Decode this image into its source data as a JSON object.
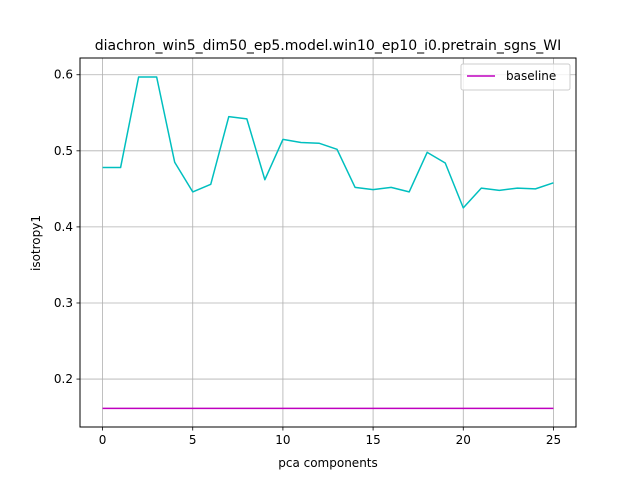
{
  "chart_data": {
    "type": "line",
    "title": "diachron_win5_dim50_ep5.model.win10_ep10_i0.pretrain_sgns_WI",
    "xlabel": "pca components",
    "ylabel": "isotropy1",
    "xlim": [
      -1.25,
      26.25
    ],
    "ylim": [
      0.137,
      0.622
    ],
    "xticks": [
      0,
      5,
      10,
      15,
      20,
      25
    ],
    "yticks": [
      0.2,
      0.3,
      0.4,
      0.5,
      0.6
    ],
    "xtick_labels": [
      "0",
      "5",
      "10",
      "15",
      "20",
      "25"
    ],
    "ytick_labels": [
      "0.2",
      "0.3",
      "0.4",
      "0.5",
      "0.6"
    ],
    "grid": true,
    "legend_position": "top-right",
    "series": [
      {
        "color": "#00bfbf",
        "x": [
          0,
          1,
          2,
          3,
          4,
          5,
          6,
          7,
          8,
          9,
          10,
          11,
          12,
          13,
          14,
          15,
          16,
          17,
          18,
          19,
          20,
          21,
          22,
          23,
          24,
          25
        ],
        "values": [
          0.478,
          0.478,
          0.597,
          0.597,
          0.485,
          0.446,
          0.456,
          0.545,
          0.542,
          0.462,
          0.515,
          0.511,
          0.51,
          0.502,
          0.452,
          0.449,
          0.452,
          0.446,
          0.498,
          0.484,
          0.425,
          0.451,
          0.448,
          0.451,
          0.45,
          0.458
        ]
      },
      {
        "name": "baseline",
        "color": "#bf00bf",
        "x": [
          0,
          25
        ],
        "values": [
          0.1615,
          0.1615
        ]
      }
    ]
  }
}
